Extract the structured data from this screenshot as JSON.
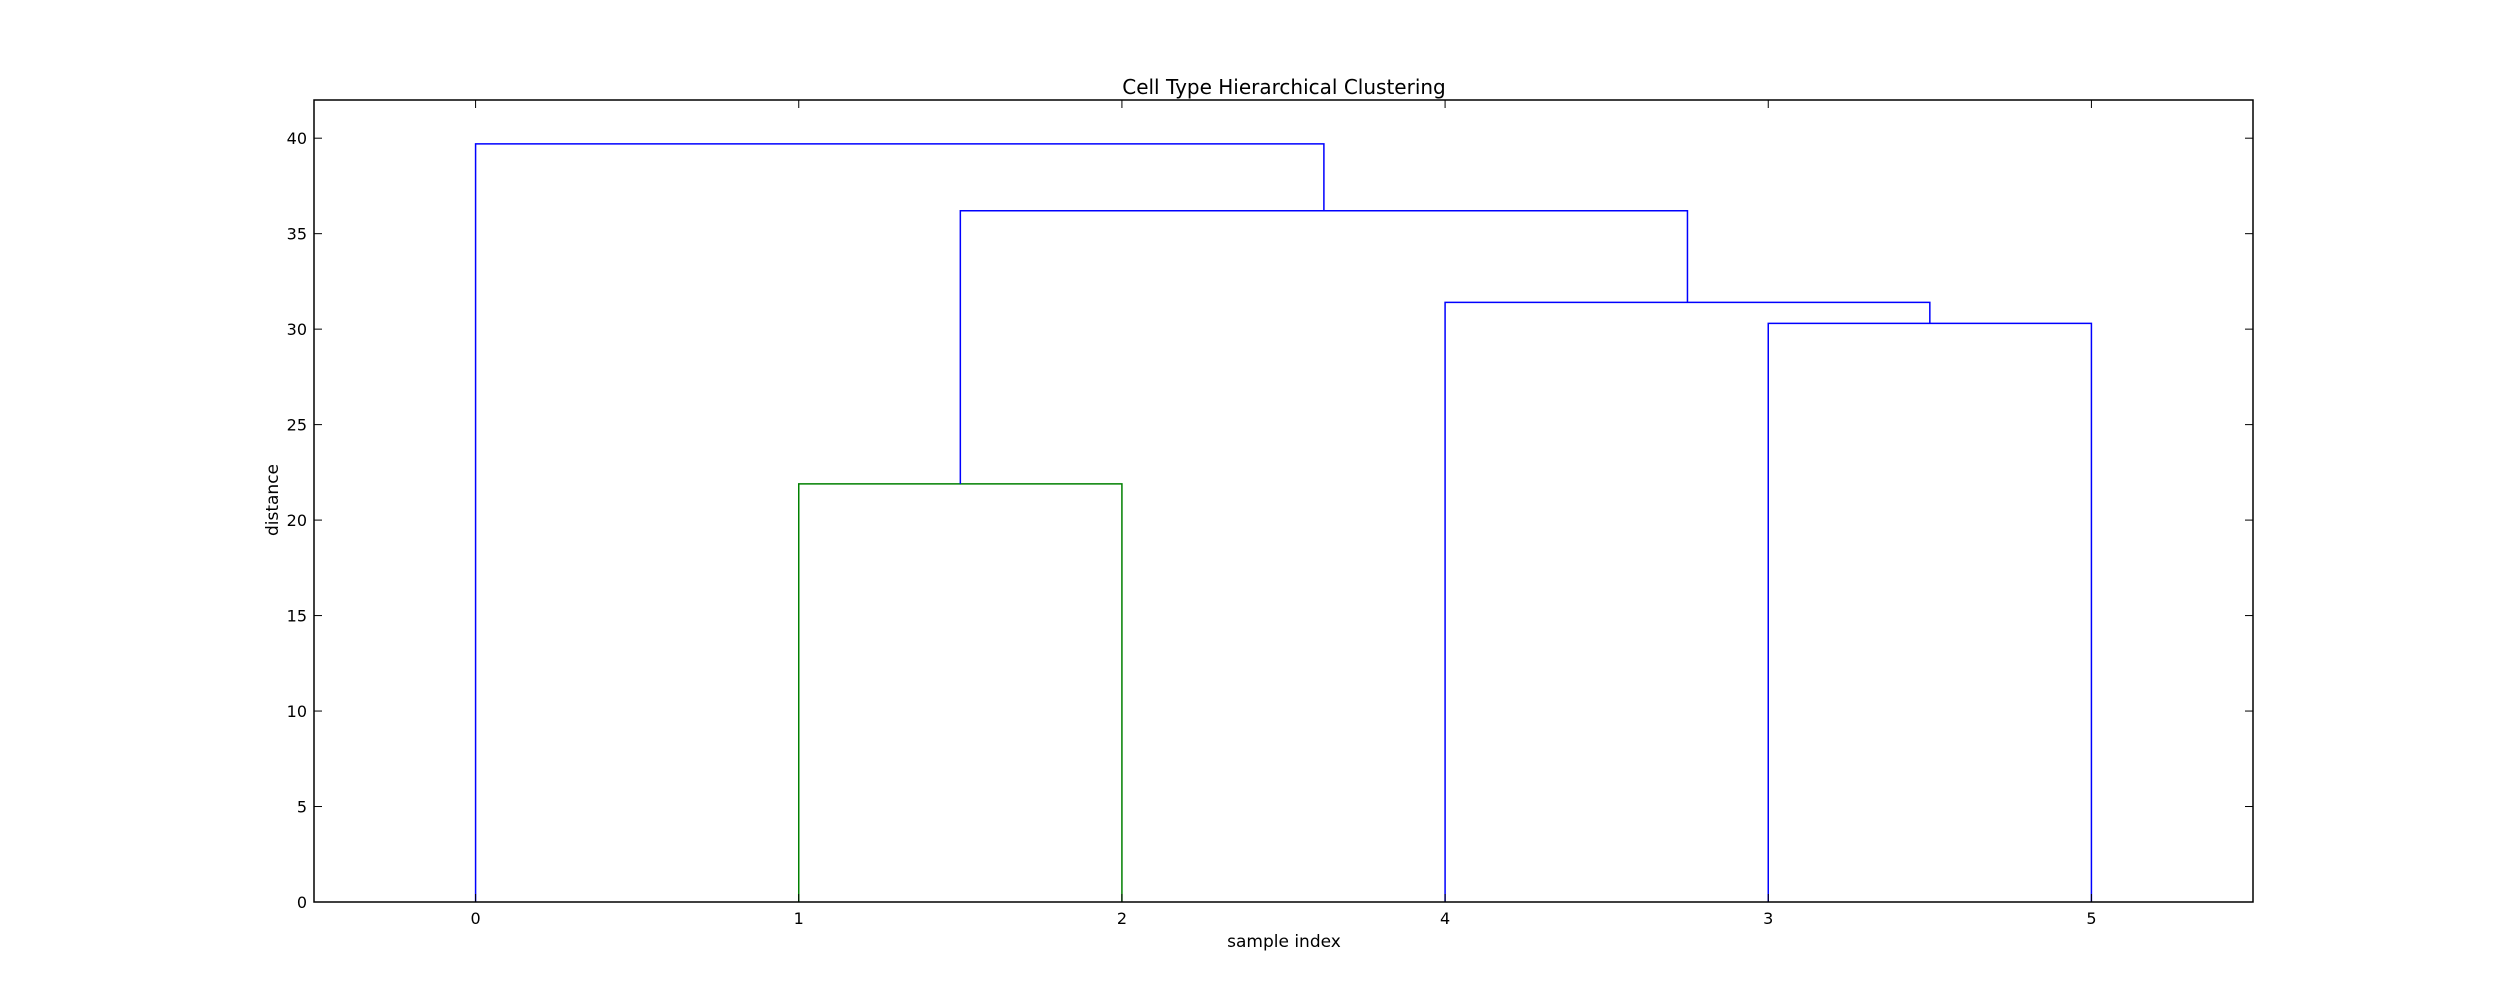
{
  "chart_data": {
    "type": "dendrogram",
    "title": "Cell Type Hierarchical Clustering",
    "xlabel": "sample index",
    "ylabel": "distance",
    "leaf_labels": [
      "0",
      "1",
      "2",
      "4",
      "3",
      "5"
    ],
    "ylim": [
      0,
      42
    ],
    "y_ticks": [
      0,
      5,
      10,
      15,
      20,
      25,
      30,
      35,
      40
    ],
    "grid": false,
    "links": [
      {
        "left": 1,
        "right": 2,
        "left_height": 0,
        "right_height": 0,
        "height": 21.9,
        "color": "#008000"
      },
      {
        "left": 4,
        "right": 5,
        "left_height": 0,
        "right_height": 0,
        "height": 30.3,
        "color": "#0000ff"
      },
      {
        "left": 3,
        "right": 4.5,
        "left_height": 0,
        "right_height": 30.3,
        "height": 31.4,
        "color": "#0000ff"
      },
      {
        "left": 1.5,
        "right": 3.75,
        "left_height": 21.9,
        "right_height": 31.4,
        "height": 36.2,
        "color": "#0000ff"
      },
      {
        "left": 0,
        "right": 2.625,
        "left_height": 0,
        "right_height": 36.2,
        "height": 39.7,
        "color": "#0000ff"
      }
    ]
  }
}
